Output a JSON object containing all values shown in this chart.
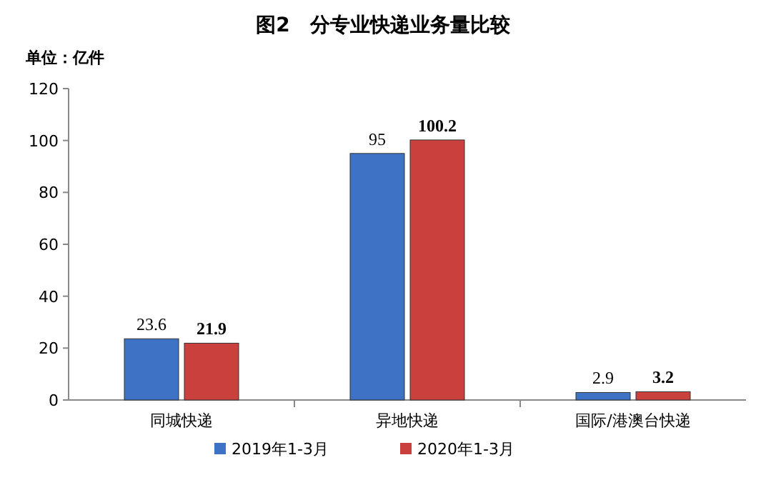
{
  "chart_data": {
    "type": "bar",
    "title": "图2　分专业快递业务量比较",
    "ylabel": "单位：亿件",
    "categories": [
      "同城快递",
      "异地快递",
      "国际/港澳台快递"
    ],
    "series": [
      {
        "name": "2019年1-3月",
        "color": "#3d72c4",
        "values": [
          23.6,
          95,
          2.9
        ]
      },
      {
        "name": "2020年1-3月",
        "color": "#c9403c",
        "values": [
          21.9,
          100.2,
          3.2
        ]
      }
    ],
    "ylim": [
      0,
      120
    ],
    "yticks": [
      0,
      20,
      40,
      60,
      80,
      100,
      120
    ],
    "data_labels": true,
    "legend": "bottom",
    "grid": false
  }
}
